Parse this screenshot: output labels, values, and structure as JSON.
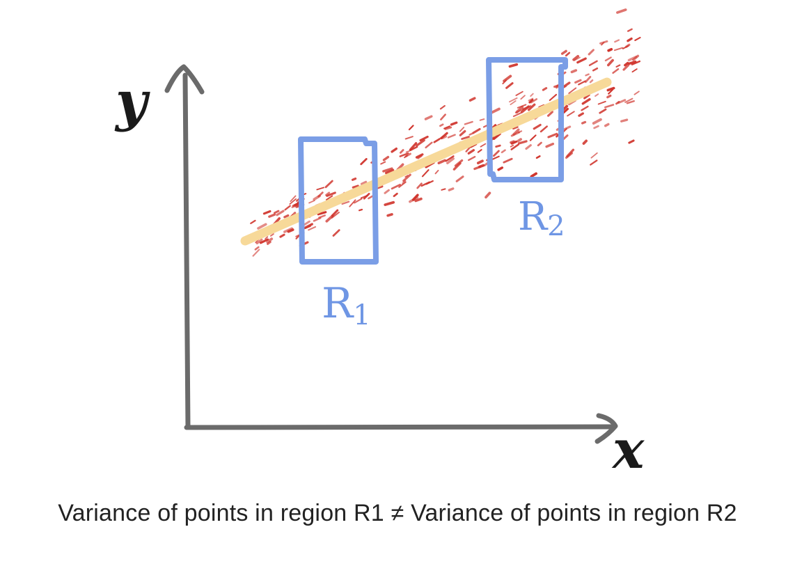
{
  "axes": {
    "y_label": "y",
    "x_label": "x"
  },
  "regions": [
    {
      "id": "r1",
      "label": "R1",
      "label_main": "R",
      "label_sub": "1"
    },
    {
      "id": "r2",
      "label": "R2",
      "label_main": "R",
      "label_sub": "2"
    }
  ],
  "caption": "Variance of points in region R1 ≠ Variance of points in region R2",
  "colors": {
    "axis": "#6b6b6b",
    "points": "#d0332b",
    "fit_line": "#f7d999",
    "region_box": "#7b9ee6",
    "region_label": "#6f96e4",
    "caption": "#222222",
    "axis_letters": "#1a1a1a"
  },
  "scatter_seed": 7
}
